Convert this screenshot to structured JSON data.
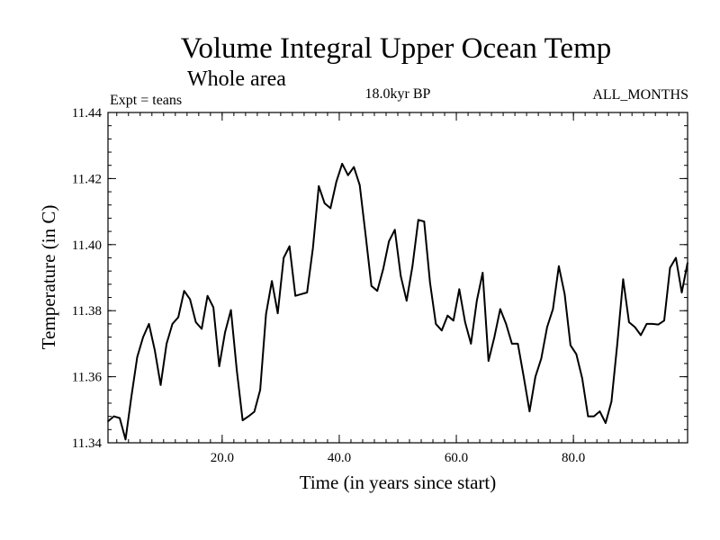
{
  "chart_data": {
    "type": "line",
    "title": "Volume Integral Upper Ocean Temp",
    "subtitle": "Whole area",
    "header_left": "Expt = teans",
    "header_center": "18.0kyr BP",
    "header_right": "ALL_MONTHS",
    "xlabel": "Time (in years since start)",
    "ylabel": "Temperature (in C)",
    "xlim": [
      0.5,
      99.5
    ],
    "ylim": [
      11.34,
      11.44
    ],
    "x_ticks": [
      20,
      40,
      60,
      80
    ],
    "x_tick_labels": [
      "20.0",
      "40.0",
      "60.0",
      "80.0"
    ],
    "y_ticks": [
      11.34,
      11.36,
      11.38,
      11.4,
      11.42,
      11.44
    ],
    "y_tick_labels": [
      "11.34",
      "11.36",
      "11.38",
      "11.40",
      "11.42",
      "11.44"
    ],
    "x_minor_step": 2,
    "y_minor_step": 0.004,
    "grid": false,
    "series": [
      {
        "name": "Temperature",
        "color": "#000000",
        "x": [
          0.5,
          1.5,
          2.5,
          3.5,
          4.5,
          5.5,
          6.5,
          7.5,
          8.5,
          9.5,
          10.5,
          11.5,
          12.5,
          13.5,
          14.5,
          15.5,
          16.5,
          17.5,
          18.5,
          19.5,
          20.5,
          21.5,
          22.5,
          23.5,
          24.5,
          25.5,
          26.5,
          27.5,
          28.5,
          29.5,
          30.5,
          31.5,
          32.5,
          33.5,
          34.5,
          35.5,
          36.5,
          37.5,
          38.5,
          39.5,
          40.5,
          41.5,
          42.5,
          43.5,
          44.5,
          45.5,
          46.5,
          47.5,
          48.5,
          49.5,
          50.5,
          51.5,
          52.5,
          53.5,
          54.5,
          55.5,
          56.5,
          57.5,
          58.5,
          59.5,
          60.5,
          61.5,
          62.5,
          63.5,
          64.5,
          65.5,
          66.5,
          67.5,
          68.5,
          69.5,
          70.5,
          71.5,
          72.5,
          73.5,
          74.5,
          75.5,
          76.5,
          77.5,
          78.5,
          79.5,
          80.5,
          81.5,
          82.5,
          83.5,
          84.5,
          85.5,
          86.5,
          87.5,
          88.5,
          89.5,
          90.5,
          91.5,
          92.5,
          93.5,
          94.5,
          95.5,
          96.5,
          97.5,
          98.5,
          99.5
        ],
        "values": [
          11.3465,
          11.348,
          11.3475,
          11.341,
          11.354,
          11.366,
          11.372,
          11.376,
          11.368,
          11.3575,
          11.37,
          11.376,
          11.378,
          11.386,
          11.3835,
          11.3765,
          11.3745,
          11.3845,
          11.381,
          11.3632,
          11.3735,
          11.3802,
          11.362,
          11.3468,
          11.348,
          11.3494,
          11.356,
          11.379,
          11.389,
          11.3792,
          11.396,
          11.3995,
          11.3845,
          11.385,
          11.3855,
          11.399,
          11.4177,
          11.4125,
          11.411,
          11.419,
          11.4245,
          11.421,
          11.4235,
          11.418,
          11.403,
          11.3875,
          11.386,
          11.3925,
          11.401,
          11.4045,
          11.3905,
          11.383,
          11.3935,
          11.4075,
          11.407,
          11.3885,
          11.376,
          11.374,
          11.3785,
          11.377,
          11.3865,
          11.3765,
          11.37,
          11.383,
          11.3915,
          11.3648,
          11.372,
          11.3805,
          11.376,
          11.37,
          11.37,
          11.36,
          11.3495,
          11.36,
          11.3655,
          11.375,
          11.3805,
          11.3935,
          11.385,
          11.3695,
          11.3668,
          11.3595,
          11.348,
          11.348,
          11.3495,
          11.346,
          11.3525,
          11.37,
          11.3895,
          11.3765,
          11.375,
          11.3726,
          11.376,
          11.376,
          11.3758,
          11.377,
          11.393,
          11.396,
          11.3855,
          11.3945
        ]
      }
    ]
  }
}
